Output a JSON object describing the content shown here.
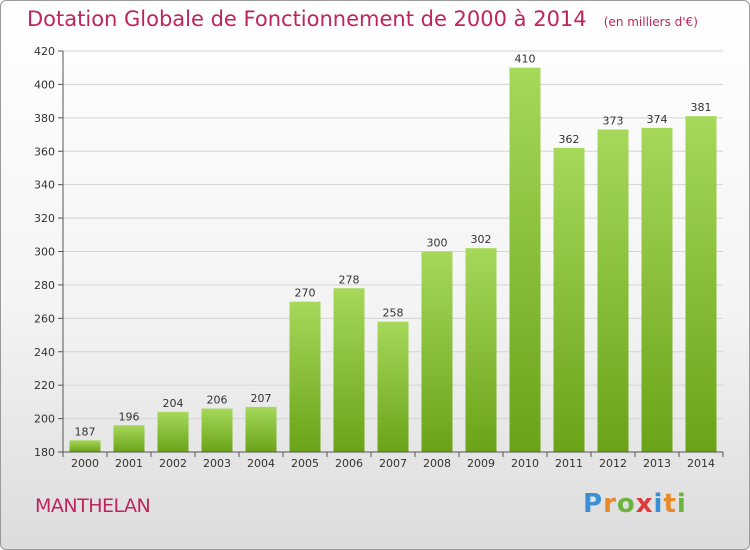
{
  "chart_data": {
    "type": "bar",
    "title": "Dotation Globale de Fonctionnement de 2000 à 2014",
    "subtitle": "(en milliers d'€)",
    "categories": [
      "2000",
      "2001",
      "2002",
      "2003",
      "2004",
      "2005",
      "2006",
      "2007",
      "2008",
      "2009",
      "2010",
      "2011",
      "2012",
      "2013",
      "2014"
    ],
    "values": [
      187,
      196,
      204,
      206,
      207,
      270,
      278,
      258,
      300,
      302,
      410,
      362,
      373,
      374,
      381
    ],
    "ylim": [
      180,
      420
    ],
    "yticks": [
      180,
      200,
      220,
      240,
      260,
      280,
      300,
      320,
      340,
      360,
      380,
      400,
      420
    ],
    "grid": true,
    "bar_color_top": "#a6d85a",
    "bar_color_bottom": "#6aa318"
  },
  "commune": "MANTHELAN",
  "logo": {
    "text": "Proxiti",
    "letters": [
      {
        "ch": "P",
        "color": "#3a8fd6"
      },
      {
        "ch": "r",
        "color": "#e8892b"
      },
      {
        "ch": "o",
        "color": "#6cb33f"
      },
      {
        "ch": "x",
        "color": "#e03a3a"
      },
      {
        "ch": "i",
        "color": "#3a8fd6"
      },
      {
        "ch": "t",
        "color": "#e8892b"
      },
      {
        "ch": "i",
        "color": "#6cb33f"
      }
    ]
  }
}
